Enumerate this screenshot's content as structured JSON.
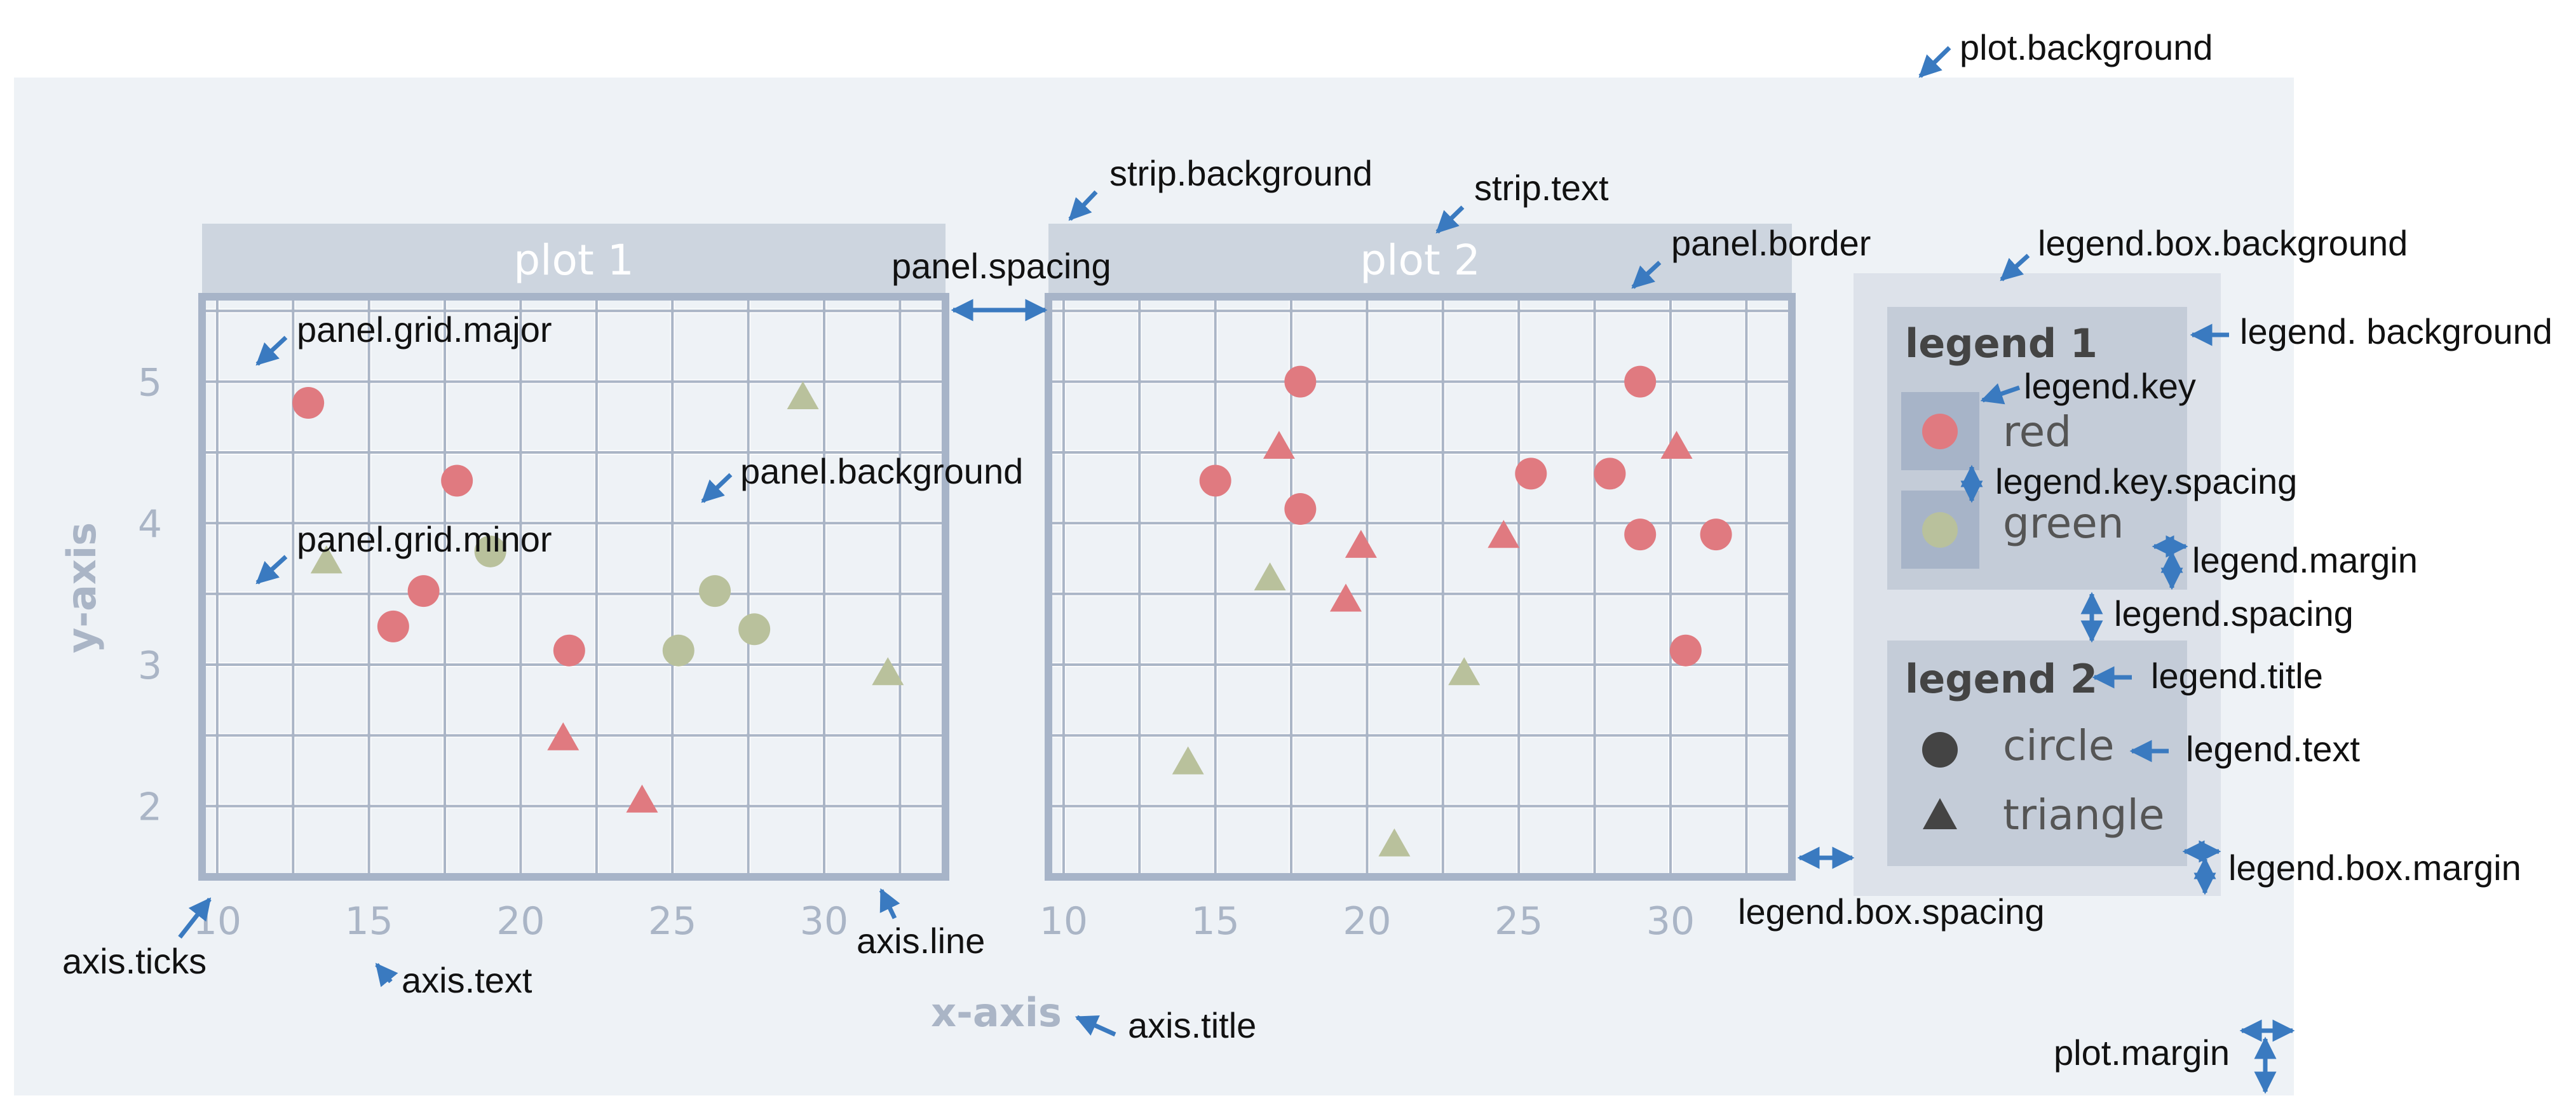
{
  "colors": {
    "plot_background": "#eef2f6",
    "strip_background": "#cdd5df",
    "panel_border": "#a7b4c8",
    "grid_line": "#aab5c6",
    "legend_box_bg": "#dde2ea",
    "legend_bg": "#c4ccd8",
    "legend_key_bg": "#a7b4c8",
    "axis_text": "#aab5c6",
    "red": "#e07a80",
    "green": "#b9c19c",
    "arrow": "#3a7ac0",
    "dark": "#444444"
  },
  "chart_data": [
    {
      "type": "scatter",
      "strip_title": "plot 1",
      "xlim": [
        9.5,
        34
      ],
      "ylim": [
        1.5,
        5.6
      ],
      "xticks": [
        10,
        15,
        20,
        25,
        30
      ],
      "yticks": [
        2,
        3,
        4,
        5
      ],
      "points": [
        {
          "x": 13.0,
          "y": 4.85,
          "color": "red",
          "shape": "circle"
        },
        {
          "x": 17.9,
          "y": 4.3,
          "color": "red",
          "shape": "circle"
        },
        {
          "x": 16.8,
          "y": 3.52,
          "color": "red",
          "shape": "circle"
        },
        {
          "x": 15.8,
          "y": 3.27,
          "color": "red",
          "shape": "circle"
        },
        {
          "x": 21.6,
          "y": 3.1,
          "color": "red",
          "shape": "circle"
        },
        {
          "x": 21.4,
          "y": 2.47,
          "color": "red",
          "shape": "triangle"
        },
        {
          "x": 24.0,
          "y": 2.03,
          "color": "red",
          "shape": "triangle"
        },
        {
          "x": 13.6,
          "y": 3.72,
          "color": "green",
          "shape": "triangle"
        },
        {
          "x": 19.0,
          "y": 3.8,
          "color": "green",
          "shape": "circle"
        },
        {
          "x": 26.4,
          "y": 3.52,
          "color": "green",
          "shape": "circle"
        },
        {
          "x": 25.2,
          "y": 3.1,
          "color": "green",
          "shape": "circle"
        },
        {
          "x": 27.7,
          "y": 3.25,
          "color": "green",
          "shape": "circle"
        },
        {
          "x": 29.3,
          "y": 4.88,
          "color": "green",
          "shape": "triangle"
        },
        {
          "x": 32.1,
          "y": 2.93,
          "color": "green",
          "shape": "triangle"
        }
      ]
    },
    {
      "type": "scatter",
      "strip_title": "plot 2",
      "xlim": [
        9.5,
        34
      ],
      "ylim": [
        1.5,
        5.6
      ],
      "xticks": [
        10,
        15,
        20,
        25,
        30
      ],
      "yticks": [
        2,
        3,
        4,
        5
      ],
      "points": [
        {
          "x": 17.8,
          "y": 5.0,
          "color": "red",
          "shape": "circle"
        },
        {
          "x": 15.0,
          "y": 4.3,
          "color": "red",
          "shape": "circle"
        },
        {
          "x": 17.8,
          "y": 4.1,
          "color": "red",
          "shape": "circle"
        },
        {
          "x": 25.4,
          "y": 4.35,
          "color": "red",
          "shape": "circle"
        },
        {
          "x": 28.0,
          "y": 4.35,
          "color": "red",
          "shape": "circle"
        },
        {
          "x": 29.0,
          "y": 5.0,
          "color": "red",
          "shape": "circle"
        },
        {
          "x": 29.0,
          "y": 3.92,
          "color": "red",
          "shape": "circle"
        },
        {
          "x": 31.5,
          "y": 3.92,
          "color": "red",
          "shape": "circle"
        },
        {
          "x": 30.5,
          "y": 3.1,
          "color": "red",
          "shape": "circle"
        },
        {
          "x": 17.1,
          "y": 4.53,
          "color": "red",
          "shape": "triangle"
        },
        {
          "x": 19.8,
          "y": 3.83,
          "color": "red",
          "shape": "triangle"
        },
        {
          "x": 19.3,
          "y": 3.45,
          "color": "red",
          "shape": "triangle"
        },
        {
          "x": 24.5,
          "y": 3.9,
          "color": "red",
          "shape": "triangle"
        },
        {
          "x": 30.2,
          "y": 4.53,
          "color": "red",
          "shape": "triangle"
        },
        {
          "x": 16.8,
          "y": 3.6,
          "color": "green",
          "shape": "triangle"
        },
        {
          "x": 23.2,
          "y": 2.93,
          "color": "green",
          "shape": "triangle"
        },
        {
          "x": 14.1,
          "y": 2.3,
          "color": "green",
          "shape": "triangle"
        },
        {
          "x": 20.9,
          "y": 1.72,
          "color": "green",
          "shape": "triangle"
        }
      ]
    }
  ],
  "axes": {
    "x_title": "x-axis",
    "y_title": "y-axis"
  },
  "legends": [
    {
      "title": "legend 1",
      "items": [
        {
          "label": "red",
          "color": "red",
          "shape": "circle"
        },
        {
          "label": "green",
          "color": "green",
          "shape": "circle"
        }
      ]
    },
    {
      "title": "legend 2",
      "items": [
        {
          "label": "circle",
          "color": "dark",
          "shape": "circle"
        },
        {
          "label": "triangle",
          "color": "dark",
          "shape": "triangle"
        }
      ]
    }
  ],
  "annotations": {
    "plot_background": "plot.background",
    "strip_background": "strip.background",
    "strip_text": "strip.text",
    "panel_spacing": "panel.spacing",
    "panel_border": "panel.border",
    "panel_grid_major": "panel.grid.major",
    "panel_grid_minor": "panel.grid.minor",
    "panel_background": "panel.background",
    "legend_box_background": "legend.box.background",
    "legend_background": "legend. background",
    "legend_key": "legend.key",
    "legend_key_spacing": "legend.key.spacing",
    "legend_margin": "legend.margin",
    "legend_spacing": "legend.spacing",
    "legend_title": "legend.title",
    "legend_text": "legend.text",
    "legend_box_margin": "legend.box.margin",
    "legend_box_spacing": "legend.box.spacing",
    "axis_ticks": "axis.ticks",
    "axis_text": "axis.text",
    "axis_line": "axis.line",
    "axis_title": "axis.title",
    "plot_margin": "plot.margin"
  }
}
